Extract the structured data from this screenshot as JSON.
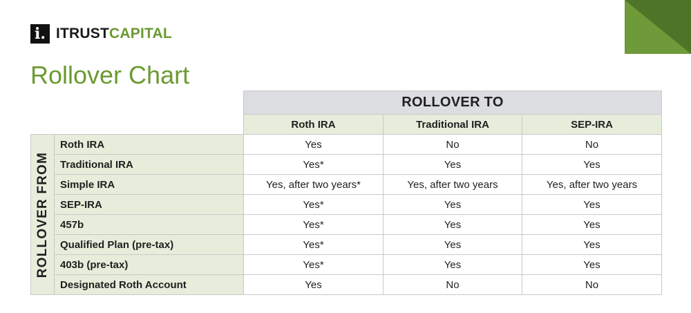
{
  "brand": {
    "mark": "i.",
    "name_part1": "ITRUST",
    "name_part2": "CAPITAL",
    "dark_color": "#1a1a1a",
    "accent_color": "#6b9a31"
  },
  "title": "Rollover Chart",
  "table": {
    "to_header": "ROLLOVER TO",
    "from_header": "ROLLOVER FROM",
    "columns": [
      "Roth IRA",
      "Traditional IRA",
      "SEP-IRA"
    ],
    "rows": [
      {
        "label": "Roth IRA",
        "values": [
          "Yes",
          "No",
          "No"
        ]
      },
      {
        "label": "Traditional IRA",
        "values": [
          "Yes*",
          "Yes",
          "Yes"
        ]
      },
      {
        "label": "Simple IRA",
        "values": [
          "Yes, after two years*",
          "Yes, after two years",
          "Yes, after two years"
        ]
      },
      {
        "label": "SEP-IRA",
        "values": [
          "Yes*",
          "Yes",
          "Yes"
        ]
      },
      {
        "label": "457b",
        "values": [
          "Yes*",
          "Yes",
          "Yes"
        ]
      },
      {
        "label": "Qualified Plan (pre-tax)",
        "values": [
          "Yes*",
          "Yes",
          "Yes"
        ]
      },
      {
        "label": "403b (pre-tax)",
        "values": [
          "Yes*",
          "Yes",
          "Yes"
        ]
      },
      {
        "label": "Designated Roth Account",
        "values": [
          "Yes",
          "No",
          "No"
        ]
      }
    ]
  },
  "colors": {
    "header_gray": "#dcdde0",
    "label_green_bg": "#e6eddb",
    "corner_light": "#5f8c2f",
    "corner_dark": "#4a6f22"
  }
}
